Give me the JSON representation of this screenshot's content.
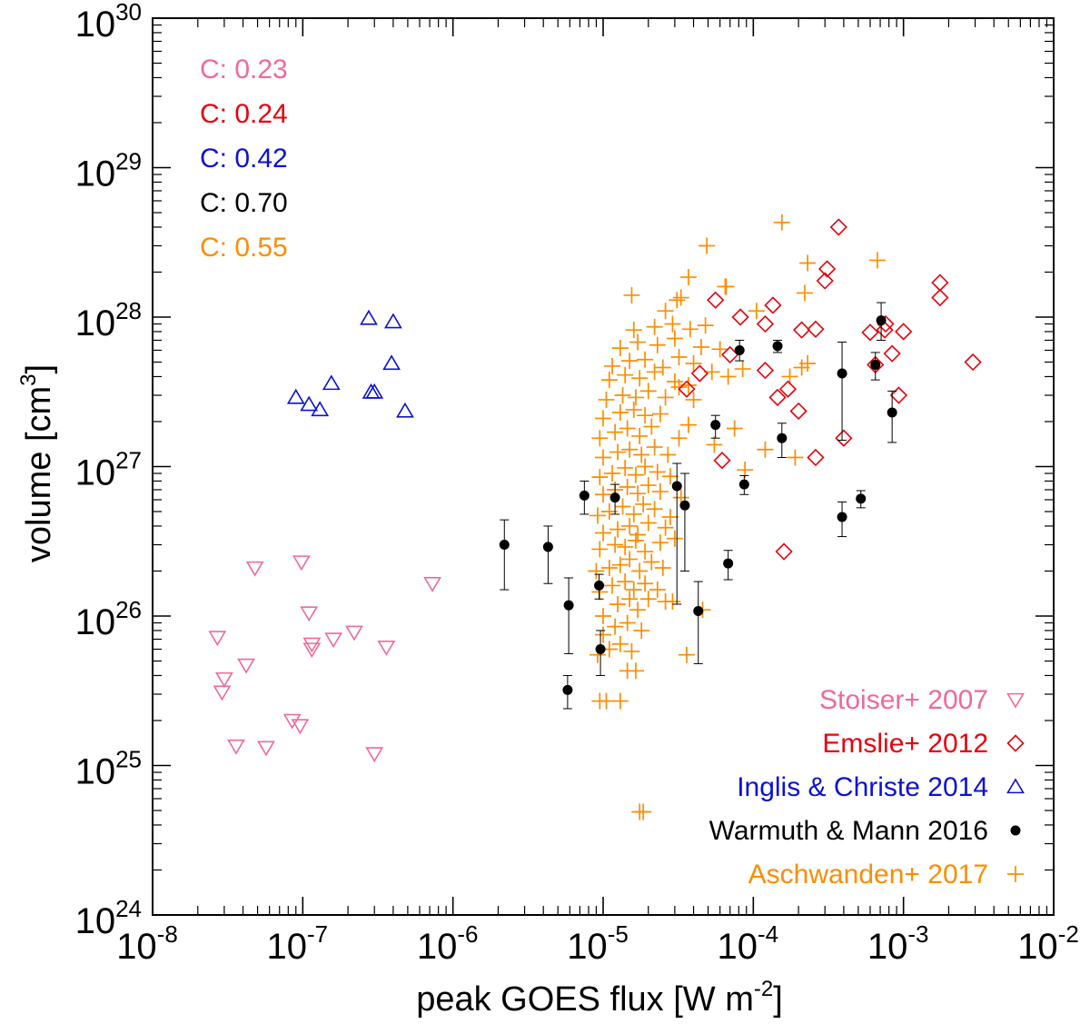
{
  "chart_data": {
    "type": "scatter",
    "xlabel": "peak GOES flux [W m",
    "xlabel_sup": "-2",
    "xlabel_end": "]",
    "ylabel": "volume [cm",
    "ylabel_sup": "3",
    "ylabel_end": "]",
    "x_scale": "log",
    "y_scale": "log",
    "xlim": [
      1e-08,
      0.01
    ],
    "ylim": [
      1e+24,
      1e+30
    ],
    "x_ticks": [
      {
        "base": "10",
        "exp": "-8",
        "v": 1e-08
      },
      {
        "base": "10",
        "exp": "-7",
        "v": 1e-07
      },
      {
        "base": "10",
        "exp": "-6",
        "v": 1e-06
      },
      {
        "base": "10",
        "exp": "-5",
        "v": 1e-05
      },
      {
        "base": "10",
        "exp": "-4",
        "v": 0.0001
      },
      {
        "base": "10",
        "exp": "-3",
        "v": 0.001
      },
      {
        "base": "10",
        "exp": "-2",
        "v": 0.01
      }
    ],
    "y_ticks": [
      {
        "base": "10",
        "exp": "24",
        "v": 1e+24
      },
      {
        "base": "10",
        "exp": "25",
        "v": 1e+25
      },
      {
        "base": "10",
        "exp": "26",
        "v": 1e+26
      },
      {
        "base": "10",
        "exp": "27",
        "v": 1e+27
      },
      {
        "base": "10",
        "exp": "28",
        "v": 1e+28
      },
      {
        "base": "10",
        "exp": "29",
        "v": 1e+29
      },
      {
        "base": "10",
        "exp": "30",
        "v": 1e+30
      }
    ],
    "annotations": [
      {
        "text": "C: 0.23",
        "color": "#ee6a9a"
      },
      {
        "text": "C: 0.24",
        "color": "#e8000b"
      },
      {
        "text": "C: 0.42",
        "color": "#0b10d8"
      },
      {
        "text": "C: 0.70",
        "color": "#000000"
      },
      {
        "text": "C: 0.55",
        "color": "#ff8c00"
      }
    ],
    "legend_position": "bottom-right",
    "series": [
      {
        "name": "Stoiser+ 2007",
        "color": "#ee6a9a",
        "marker": "triangle-down",
        "points": [
          [
            2.7e-08,
            7.2e+25
          ],
          [
            2.9e-08,
            3.1e+25
          ],
          [
            3e-08,
            3.8e+25
          ],
          [
            3.6e-08,
            1.35e+25
          ],
          [
            4.2e-08,
            4.7e+25
          ],
          [
            4.8e-08,
            2.1e+26
          ],
          [
            5.7e-08,
            1.32e+25
          ],
          [
            8.5e-08,
            2e+25
          ],
          [
            9.6e-08,
            1.85e+25
          ],
          [
            9.8e-08,
            2.3e+26
          ],
          [
            1.1e-07,
            1.05e+26
          ],
          [
            1.15e-07,
            6.5e+25
          ],
          [
            1.15e-07,
            6e+25
          ],
          [
            1.6e-07,
            7e+25
          ],
          [
            2.2e-07,
            7.8e+25
          ],
          [
            3e-07,
            1.2e+25
          ],
          [
            3.6e-07,
            6.2e+25
          ],
          [
            7.3e-07,
            1.65e+26
          ]
        ]
      },
      {
        "name": "Emslie+ 2012",
        "color": "#e8000b",
        "marker": "diamond",
        "points": [
          [
            3.6e-05,
            3.3e+27
          ],
          [
            4.4e-05,
            4.2e+27
          ],
          [
            5.6e-05,
            1.3e+28
          ],
          [
            6.2e-05,
            1.1e+27
          ],
          [
            7e-05,
            5.6e+27
          ],
          [
            8.2e-05,
            1e+28
          ],
          [
            0.00012,
            4.4e+27
          ],
          [
            0.00012,
            9e+27
          ],
          [
            0.000135,
            1.2e+28
          ],
          [
            0.000145,
            2.9e+27
          ],
          [
            0.00016,
            2.7e+26
          ],
          [
            0.00017,
            3.3e+27
          ],
          [
            0.0002,
            2.35e+27
          ],
          [
            0.00021,
            8.2e+27
          ],
          [
            0.00026,
            1.15e+27
          ],
          [
            0.00026,
            8.3e+27
          ],
          [
            0.0003,
            1.75e+28
          ],
          [
            0.00031,
            2.1e+28
          ],
          [
            0.00037,
            4e+28
          ],
          [
            0.0004,
            1.55e+27
          ],
          [
            0.0006,
            7.9e+27
          ],
          [
            0.00065,
            4.8e+27
          ],
          [
            0.00075,
            8.2e+27
          ],
          [
            0.00076,
            9e+27
          ],
          [
            0.00084,
            5.7e+27
          ],
          [
            0.00093,
            3e+27
          ],
          [
            0.001,
            8e+27
          ],
          [
            0.00175,
            1.7e+28
          ],
          [
            0.00175,
            1.35e+28
          ],
          [
            0.0029,
            5e+27
          ]
        ]
      },
      {
        "name": "Inglis & Christe 2014",
        "color": "#0b10d8",
        "marker": "triangle-up",
        "points": [
          [
            9e-08,
            2.9e+27
          ],
          [
            1.1e-07,
            2.6e+27
          ],
          [
            1.3e-07,
            2.4e+27
          ],
          [
            1.55e-07,
            3.6e+27
          ],
          [
            2.75e-07,
            9.8e+27
          ],
          [
            2.85e-07,
            3.15e+27
          ],
          [
            3e-07,
            3.15e+27
          ],
          [
            3.9e-07,
            4.9e+27
          ],
          [
            4e-07,
            9.3e+27
          ],
          [
            4.8e-07,
            2.35e+27
          ]
        ]
      },
      {
        "name": "Warmuth & Mann 2016",
        "color": "#000000",
        "marker": "dot",
        "points": [
          [
            2.2e-06,
            3e+26,
            1.5e+26,
            4.4e+26
          ],
          [
            4.3e-06,
            2.9e+26,
            1.65e+26,
            4e+26
          ],
          [
            5.8e-06,
            3.2e+25,
            2.4e+25,
            4e+25
          ],
          [
            5.9e-06,
            1.18e+26,
            5.6e+25,
            1.8e+26
          ],
          [
            7.5e-06,
            6.4e+26,
            4.8e+26,
            8e+26
          ],
          [
            9.4e-06,
            1.6e+26,
            1.3e+26,
            1.9e+26
          ],
          [
            9.6e-06,
            6e+25,
            4e+25,
            8e+25
          ],
          [
            1.2e-05,
            6.2e+26,
            4.8e+26,
            7.6e+26
          ],
          [
            3.1e-05,
            7.4e+26,
            1.2e+26,
            1.05e+27
          ],
          [
            3.5e-05,
            5.5e+26,
            2e+26,
            9e+26
          ],
          [
            4.3e-05,
            1.08e+26,
            4.8e+25,
            1.7e+26
          ],
          [
            5.6e-05,
            1.9e+27,
            1.55e+27,
            2.2e+27
          ],
          [
            6.8e-05,
            2.25e+26,
            1.75e+26,
            2.75e+26
          ],
          [
            8.1e-05,
            6e+27,
            5.1e+27,
            7e+27
          ],
          [
            8.7e-05,
            7.6e+26,
            6.5e+26,
            8.7e+26
          ],
          [
            0.000145,
            6.4e+27,
            5.8e+27,
            7e+27
          ],
          [
            0.000155,
            1.55e+27,
            1.15e+27,
            1.95e+27
          ],
          [
            0.00039,
            4.2e+27,
            1.5e+27,
            6.8e+27
          ],
          [
            0.00039,
            4.6e+26,
            3.4e+26,
            5.8e+26
          ],
          [
            0.00052,
            6.1e+26,
            5.3e+26,
            6.9e+26
          ],
          [
            0.00065,
            4.8e+27,
            3.8e+27,
            5.8e+27
          ],
          [
            0.00071,
            9.5e+27,
            7e+27,
            1.25e+28
          ],
          [
            0.00084,
            2.3e+27,
            1.45e+27,
            3.2e+27
          ]
        ]
      },
      {
        "name": "Aschwanden+ 2017",
        "color": "#ff8c00",
        "marker": "plus",
        "points": [
          [
            1.75e-05,
            4.9e+24
          ],
          [
            1.85e-05,
            4.9e+24
          ],
          [
            9.5e-06,
            2.7e+25
          ],
          [
            1.05e-05,
            2.7e+25
          ],
          [
            1.3e-05,
            2.7e+25
          ],
          [
            1.45e-05,
            4.3e+25
          ],
          [
            1.65e-05,
            4.3e+25
          ],
          [
            9.2e-06,
            5.5e+25
          ],
          [
            1.1e-05,
            6e+25
          ],
          [
            1.3e-05,
            6.5e+25
          ],
          [
            1.55e-05,
            5.8e+25
          ],
          [
            1e-05,
            7.5e+25
          ],
          [
            1.2e-05,
            8.5e+25
          ],
          [
            1.45e-05,
            9e+25
          ],
          [
            1.8e-05,
            8e+25
          ],
          [
            3.6e-05,
            5.5e+25
          ],
          [
            4.6e-05,
            1.1e+26
          ],
          [
            1e-05,
            1e+26
          ],
          [
            1.25e-05,
            1.2e+26
          ],
          [
            1.5e-05,
            1.3e+26
          ],
          [
            1.7e-05,
            1.1e+26
          ],
          [
            2e-05,
            1.3e+26
          ],
          [
            2.6e-05,
            1.25e+26
          ],
          [
            2.9e-05,
            1.25e+26
          ],
          [
            9.5e-06,
            1.45e+26
          ],
          [
            1.15e-05,
            1.6e+26
          ],
          [
            1.4e-05,
            1.7e+26
          ],
          [
            1.6e-05,
            1.5e+26
          ],
          [
            1.9e-05,
            1.65e+26
          ],
          [
            2.3e-05,
            1.5e+26
          ],
          [
            9e-06,
            2e+26
          ],
          [
            1.1e-05,
            2.1e+26
          ],
          [
            1.3e-05,
            2.2e+26
          ],
          [
            1.5e-05,
            2.4e+26
          ],
          [
            1.75e-05,
            2e+26
          ],
          [
            2.1e-05,
            2.3e+26
          ],
          [
            2.5e-05,
            2.1e+26
          ],
          [
            9.5e-06,
            2.8e+26
          ],
          [
            1.2e-05,
            3e+26
          ],
          [
            1.4e-05,
            2.9e+26
          ],
          [
            1.65e-05,
            3.2e+26
          ],
          [
            1.9e-05,
            2.7e+26
          ],
          [
            2.4e-05,
            3.1e+26
          ],
          [
            1e-05,
            3.6e+26
          ],
          [
            1.25e-05,
            3.8e+26
          ],
          [
            1.5e-05,
            4e+26
          ],
          [
            1.7e-05,
            3.5e+26
          ],
          [
            2e-05,
            4.2e+26
          ],
          [
            2.6e-05,
            3.9e+26
          ],
          [
            3e-05,
            3.3e+26
          ],
          [
            9.2e-06,
            4.7e+26
          ],
          [
            1.1e-05,
            5e+26
          ],
          [
            1.35e-05,
            5.4e+26
          ],
          [
            1.6e-05,
            4.8e+26
          ],
          [
            1.85e-05,
            5.6e+26
          ],
          [
            2.2e-05,
            5.2e+26
          ],
          [
            2.8e-05,
            4.6e+26
          ],
          [
            1e-05,
            6.5e+26
          ],
          [
            1.2e-05,
            7e+26
          ],
          [
            1.45e-05,
            7.3e+26
          ],
          [
            1.7e-05,
            6.6e+26
          ],
          [
            2e-05,
            7.5e+26
          ],
          [
            2.4e-05,
            6.8e+26
          ],
          [
            3.3e-05,
            6.2e+26
          ],
          [
            9.5e-06,
            8.5e+26
          ],
          [
            1.15e-05,
            9e+26
          ],
          [
            1.4e-05,
            9.8e+26
          ],
          [
            1.65e-05,
            8.8e+26
          ],
          [
            1.9e-05,
            1e+27
          ],
          [
            2.3e-05,
            9.2e+26
          ],
          [
            2.8e-05,
            8.6e+26
          ],
          [
            1e-05,
            1.15e+27
          ],
          [
            1.25e-05,
            1.25e+27
          ],
          [
            1.5e-05,
            1.3e+27
          ],
          [
            1.8e-05,
            1.2e+27
          ],
          [
            2.2e-05,
            1.35e+27
          ],
          [
            2.7e-05,
            1.2e+27
          ],
          [
            9.5e-06,
            1.55e+27
          ],
          [
            1.2e-05,
            1.7e+27
          ],
          [
            1.45e-05,
            1.8e+27
          ],
          [
            1.75e-05,
            1.6e+27
          ],
          [
            2.1e-05,
            1.85e+27
          ],
          [
            3.2e-05,
            1.55e+27
          ],
          [
            3.7e-05,
            1.9e+27
          ],
          [
            1e-05,
            2.1e+27
          ],
          [
            1.3e-05,
            2.3e+27
          ],
          [
            1.6e-05,
            2.4e+27
          ],
          [
            1.9e-05,
            2.2e+27
          ],
          [
            2.4e-05,
            2.25e+27
          ],
          [
            1.05e-05,
            2.8e+27
          ],
          [
            1.35e-05,
            3e+27
          ],
          [
            1.65e-05,
            2.9e+27
          ],
          [
            2e-05,
            3.2e+27
          ],
          [
            2.6e-05,
            2.9e+27
          ],
          [
            3.2e-05,
            3.4e+27
          ],
          [
            4e-05,
            2.8e+27
          ],
          [
            1.1e-05,
            3.8e+27
          ],
          [
            1.4e-05,
            4.1e+27
          ],
          [
            1.75e-05,
            3.9e+27
          ],
          [
            2.2e-05,
            4.3e+27
          ],
          [
            3e-05,
            3.7e+27
          ],
          [
            3.7e-05,
            3.5e+27
          ],
          [
            1.15e-05,
            4.7e+27
          ],
          [
            1.5e-05,
            5.1e+27
          ],
          [
            1.9e-05,
            5.2e+27
          ],
          [
            2.5e-05,
            4.6e+27
          ],
          [
            3.2e-05,
            5.4e+27
          ],
          [
            4e-05,
            4.9e+27
          ],
          [
            5.3e-05,
            4.3e+27
          ],
          [
            1.3e-05,
            6.2e+27
          ],
          [
            1.7e-05,
            6.8e+27
          ],
          [
            2.3e-05,
            6.5e+27
          ],
          [
            3e-05,
            7.2e+27
          ],
          [
            4.5e-05,
            6.3e+27
          ],
          [
            6e-05,
            6.1e+27
          ],
          [
            1.6e-05,
            8.2e+27
          ],
          [
            2.2e-05,
            8.6e+27
          ],
          [
            2.9e-05,
            9e+27
          ],
          [
            3.8e-05,
            8.3e+27
          ],
          [
            4.8e-05,
            8.8e+27
          ],
          [
            1.55e-05,
            1.4e+28
          ],
          [
            2.6e-05,
            1.1e+28
          ],
          [
            3.1e-05,
            1.3e+28
          ],
          [
            3.3e-05,
            1.35e+28
          ],
          [
            6.5e-05,
            1.6e+28
          ],
          [
            0.000105,
            1.1e+28
          ],
          [
            0.00022,
            1.45e+28
          ],
          [
            3.7e-05,
            1.85e+28
          ],
          [
            6.6e-05,
            1.6e+28
          ],
          [
            0.00023,
            2.3e+28
          ],
          [
            4.9e-05,
            3e+28
          ],
          [
            0.000155,
            4.3e+28
          ],
          [
            0.00067,
            2.4e+28
          ],
          [
            5.5e-05,
            1.4e+27
          ],
          [
            7.5e-05,
            1.8e+27
          ],
          [
            8.8e-05,
            9.5e+26
          ],
          [
            0.00012,
            1.3e+27
          ],
          [
            0.00019,
            1.15e+27
          ],
          [
            0.00021,
            4.6e+27
          ],
          [
            0.00023,
            4.9e+27
          ],
          [
            0.000175,
            4e+27
          ],
          [
            6.8e-05,
            4e+27
          ],
          [
            8.5e-05,
            4.5e+27
          ]
        ]
      }
    ]
  }
}
